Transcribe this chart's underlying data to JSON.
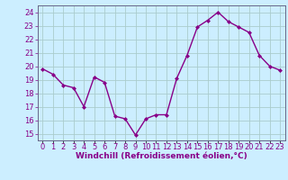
{
  "x": [
    0,
    1,
    2,
    3,
    4,
    5,
    6,
    7,
    8,
    9,
    10,
    11,
    12,
    13,
    14,
    15,
    16,
    17,
    18,
    19,
    20,
    21,
    22,
    23
  ],
  "y": [
    19.8,
    19.4,
    18.6,
    18.4,
    17.0,
    19.2,
    18.8,
    16.3,
    16.1,
    14.9,
    16.1,
    16.4,
    16.4,
    19.1,
    20.8,
    22.9,
    23.4,
    24.0,
    23.3,
    22.9,
    22.5,
    20.8,
    20.0,
    19.7
  ],
  "line_color": "#880088",
  "marker": "D",
  "marker_size": 2.0,
  "line_width": 1.0,
  "bg_color": "#cceeff",
  "grid_color": "#aacccc",
  "ylabel_ticks": [
    15,
    16,
    17,
    18,
    19,
    20,
    21,
    22,
    23,
    24
  ],
  "ylim": [
    14.5,
    24.5
  ],
  "xlim": [
    -0.5,
    23.5
  ],
  "xlabel": "Windchill (Refroidissement éolien,°C)",
  "xlabel_fontsize": 6.5,
  "tick_fontsize": 6.0,
  "tick_color": "#880088"
}
